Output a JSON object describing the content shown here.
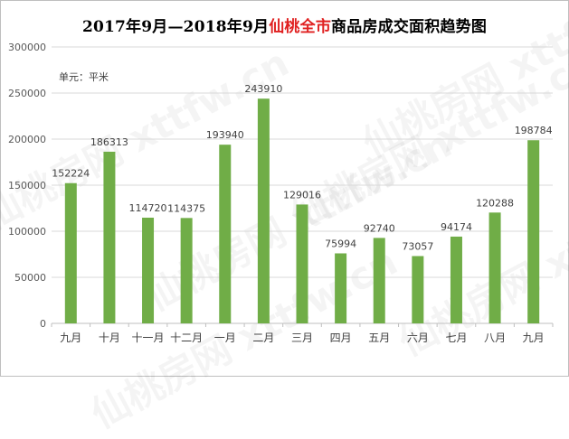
{
  "chart_data": {
    "type": "bar",
    "title_parts": {
      "prefix": "2017年9月—2018年9月",
      "highlight": "仙桃全市",
      "suffix": "商品房成交面积趋势图"
    },
    "unit_label": "单元：平米",
    "watermark": "仙桃房网 xttfw.cn",
    "categories": [
      "九月",
      "十月",
      "十一月",
      "十二月",
      "一月",
      "二月",
      "三月",
      "四月",
      "五月",
      "六月",
      "七月",
      "八月",
      "九月"
    ],
    "values": [
      152224,
      186313,
      114720,
      114375,
      193940,
      243910,
      129016,
      75994,
      92740,
      73057,
      94174,
      120288,
      198784
    ],
    "ylim": [
      0,
      300000
    ],
    "yticks": [
      0,
      50000,
      100000,
      150000,
      200000,
      250000,
      300000
    ],
    "grid": true,
    "bar_color": "#70ad47",
    "title_highlight_color": "#e02020"
  }
}
